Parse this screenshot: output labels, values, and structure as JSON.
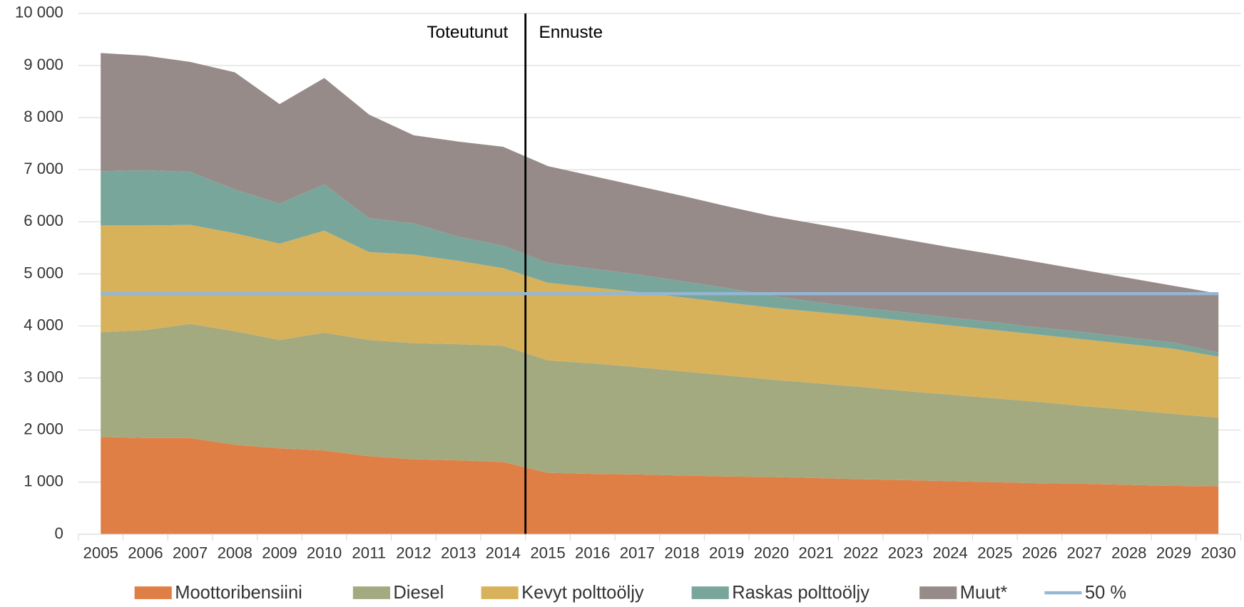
{
  "chart_data": {
    "type": "stacked_area",
    "categories": [
      "2005",
      "2006",
      "2007",
      "2008",
      "2009",
      "2010",
      "2011",
      "2012",
      "2013",
      "2014",
      "2015",
      "2016",
      "2017",
      "2018",
      "2019",
      "2020",
      "2021",
      "2022",
      "2023",
      "2024",
      "2025",
      "2026",
      "2027",
      "2028",
      "2029",
      "2030"
    ],
    "ylim": [
      0,
      10000
    ],
    "yticks": [
      0,
      {
        "value": 1000,
        "label": "1 000"
      },
      {
        "value": 2000,
        "label": "2 000"
      },
      {
        "value": 3000,
        "label": "3 000"
      },
      {
        "value": 4000,
        "label": "4 000"
      },
      {
        "value": 5000,
        "label": "5 000"
      },
      {
        "value": 6000,
        "label": "6 000"
      },
      {
        "value": 7000,
        "label": "7 000"
      },
      {
        "value": 8000,
        "label": "8 000"
      },
      {
        "value": 9000,
        "label": "9 000"
      },
      {
        "value": 10000,
        "label": "10 000"
      }
    ],
    "grid": true,
    "annotations": [
      "Toteutunut",
      "Ennuste"
    ],
    "series": [
      {
        "name": "Moottoribensiini",
        "color": "#e07f45",
        "values": [
          1870,
          1850,
          1850,
          1720,
          1650,
          1610,
          1500,
          1440,
          1420,
          1390,
          1180,
          1160,
          1150,
          1130,
          1110,
          1100,
          1080,
          1060,
          1040,
          1020,
          1000,
          980,
          970,
          950,
          930,
          920
        ]
      },
      {
        "name": "Diesel",
        "color": "#a3aa80",
        "values": [
          2010,
          2070,
          2190,
          2180,
          2080,
          2260,
          2230,
          2230,
          2230,
          2230,
          2160,
          2120,
          2060,
          2000,
          1940,
          1870,
          1820,
          1770,
          1710,
          1660,
          1610,
          1560,
          1490,
          1440,
          1380,
          1320
        ]
      },
      {
        "name": "Kevyt polttoöljy",
        "color": "#d8b15b",
        "values": [
          2050,
          2010,
          1900,
          1880,
          1850,
          1960,
          1690,
          1700,
          1600,
          1490,
          1490,
          1460,
          1440,
          1420,
          1400,
          1380,
          1370,
          1360,
          1350,
          1330,
          1310,
          1290,
          1280,
          1260,
          1250,
          1170
        ]
      },
      {
        "name": "Raskas polttoöljy",
        "color": "#79a69b",
        "values": [
          1040,
          1060,
          1020,
          840,
          770,
          890,
          650,
          600,
          460,
          430,
          380,
          360,
          340,
          310,
          280,
          230,
          190,
          160,
          160,
          150,
          150,
          140,
          140,
          130,
          120,
          80
        ]
      },
      {
        "name": "Muut*",
        "color": "#978b89",
        "values": [
          2270,
          2200,
          2110,
          2250,
          1910,
          2040,
          1990,
          1690,
          1830,
          1900,
          1860,
          1780,
          1700,
          1640,
          1570,
          1530,
          1500,
          1460,
          1400,
          1350,
          1300,
          1250,
          1190,
          1140,
          1090,
          1130
        ]
      },
      {
        "name": "50 %",
        "color": "#93b7d4",
        "kind": "line",
        "values": [
          4620,
          4620,
          4620,
          4620,
          4620,
          4620,
          4620,
          4620,
          4620,
          4620,
          4620,
          4620,
          4620,
          4620,
          4620,
          4620,
          4620,
          4620,
          4620,
          4620,
          4620,
          4620,
          4620,
          4620,
          4620,
          4620
        ]
      }
    ]
  }
}
